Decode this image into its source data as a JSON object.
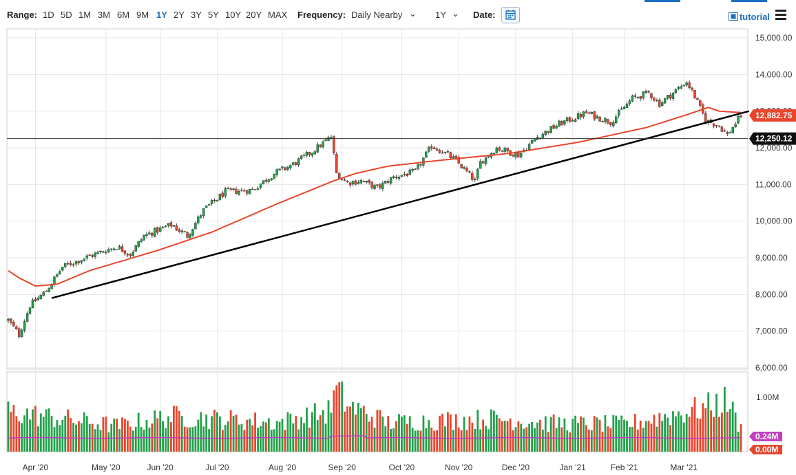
{
  "toolbar": {
    "range_label": "Range:",
    "ranges": [
      "1D",
      "5D",
      "1M",
      "3M",
      "6M",
      "9M",
      "1Y",
      "2Y",
      "3Y",
      "5Y",
      "10Y",
      "20Y",
      "MAX"
    ],
    "active_range": "1Y",
    "frequency_label": "Frequency:",
    "frequency_value": "Daily Nearby",
    "period_value": "1Y",
    "date_label": "Date:",
    "tutorial_label": "tutorial"
  },
  "colors": {
    "up": "#22a04b",
    "down": "#e8452c",
    "ma": "#e8452c",
    "trendline": "#000000",
    "volume_avg": "#c040c0",
    "accent": "#1a6fc0"
  },
  "chart_data": [
    {
      "type": "candlestick",
      "x_ticks": [
        "Apr '20",
        "May '20",
        "Jun '20",
        "Jul '20",
        "Aug '20",
        "Sep '20",
        "Oct '20",
        "Nov '20",
        "Dec '20",
        "Jan '21",
        "Feb '21",
        "Mar '21"
      ],
      "y_ticks": [
        "15,000.00",
        "14,000.00",
        "13,000.00",
        "12,000.00",
        "11,000.00",
        "10,000.00",
        "9,000.00",
        "8,000.00",
        "7,000.00",
        "6,000.00"
      ],
      "ylim": [
        6000,
        15000
      ],
      "last_price": "12,882.75",
      "horizontal_line_label": "12,250.12",
      "horizontal_line_value": 12250.12,
      "trendline": {
        "start": [
          "Apr '20",
          7900
        ],
        "end": [
          "Mar '21",
          13000
        ]
      },
      "moving_average_keypoints": [
        [
          0,
          8650
        ],
        [
          4,
          8450
        ],
        [
          10,
          8230
        ],
        [
          18,
          8280
        ],
        [
          30,
          8650
        ],
        [
          55,
          9200
        ],
        [
          75,
          9700
        ],
        [
          100,
          10500
        ],
        [
          120,
          11100
        ],
        [
          128,
          11300
        ],
        [
          140,
          11500
        ],
        [
          158,
          11650
        ],
        [
          185,
          11850
        ],
        [
          210,
          12150
        ],
        [
          235,
          12550
        ],
        [
          250,
          12900
        ],
        [
          258,
          13100
        ],
        [
          262,
          13000
        ],
        [
          270,
          12960
        ]
      ],
      "price_keypoints": [
        [
          0,
          7300
        ],
        [
          4,
          6900
        ],
        [
          8,
          7700
        ],
        [
          14,
          8100
        ],
        [
          20,
          8750
        ],
        [
          30,
          9050
        ],
        [
          40,
          9300
        ],
        [
          45,
          9100
        ],
        [
          50,
          9600
        ],
        [
          60,
          9900
        ],
        [
          66,
          9600
        ],
        [
          72,
          10300
        ],
        [
          80,
          10800
        ],
        [
          90,
          10850
        ],
        [
          98,
          11300
        ],
        [
          105,
          11550
        ],
        [
          112,
          11900
        ],
        [
          119,
          12300
        ],
        [
          121,
          11300
        ],
        [
          125,
          11050
        ],
        [
          130,
          11100
        ],
        [
          136,
          10900
        ],
        [
          142,
          11200
        ],
        [
          150,
          11350
        ],
        [
          156,
          12050
        ],
        [
          160,
          11900
        ],
        [
          165,
          11650
        ],
        [
          172,
          11100
        ],
        [
          174,
          11600
        ],
        [
          180,
          12000
        ],
        [
          188,
          11800
        ],
        [
          195,
          12300
        ],
        [
          203,
          12650
        ],
        [
          213,
          12950
        ],
        [
          222,
          12700
        ],
        [
          230,
          13350
        ],
        [
          236,
          13500
        ],
        [
          240,
          13200
        ],
        [
          250,
          13800
        ],
        [
          253,
          13400
        ],
        [
          257,
          12750
        ],
        [
          262,
          12600
        ],
        [
          265,
          12350
        ],
        [
          270,
          12880
        ]
      ],
      "candle_count": 271
    },
    {
      "type": "bar",
      "series": [
        {
          "values_ref": "volume"
        }
      ],
      "y_ticks": [
        "1.00M"
      ],
      "tags": [
        "0.24M",
        "0.00M"
      ],
      "volume_keypoints": [
        [
          0,
          0.85
        ],
        [
          40,
          0.55
        ],
        [
          60,
          0.75
        ],
        [
          100,
          0.62
        ],
        [
          118,
          0.85
        ],
        [
          121,
          1.28
        ],
        [
          126,
          0.95
        ],
        [
          140,
          0.62
        ],
        [
          180,
          0.7
        ],
        [
          200,
          0.6
        ],
        [
          228,
          0.58
        ],
        [
          258,
          0.95
        ],
        [
          265,
          1.08
        ],
        [
          270,
          0.48
        ]
      ],
      "volume_avg": 0.24
    }
  ]
}
